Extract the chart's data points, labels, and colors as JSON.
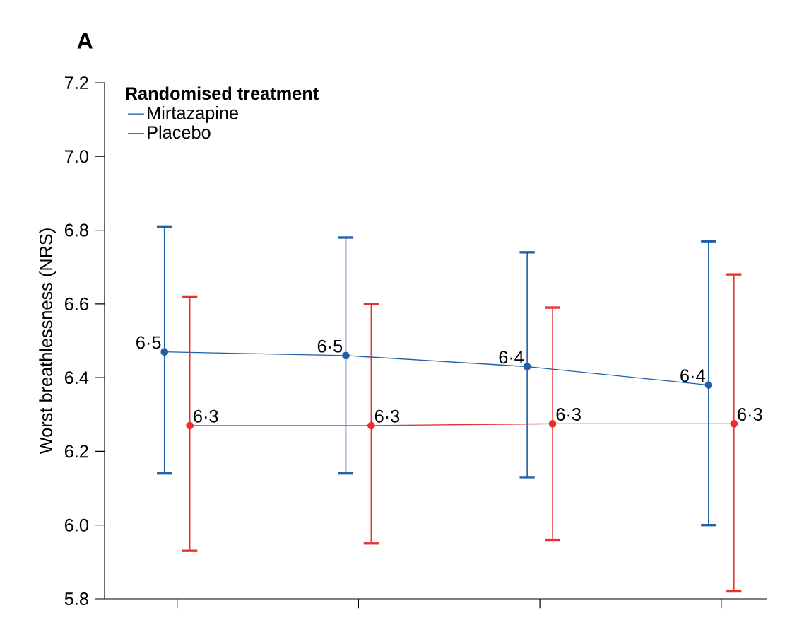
{
  "chart_data": {
    "type": "line",
    "title": "A",
    "ylabel": "Worst breathlessness (NRS)",
    "legend_title": "Randomised treatment",
    "categories": [
      null,
      null,
      null,
      null
    ],
    "ylim": [
      5.8,
      7.2
    ],
    "yticks": [
      {
        "value": 5.8,
        "label": "5.8"
      },
      {
        "value": 6.0,
        "label": "6.0"
      },
      {
        "value": 6.2,
        "label": "6.2"
      },
      {
        "value": 6.4,
        "label": "6.4"
      },
      {
        "value": 6.6,
        "label": "6.6"
      },
      {
        "value": 6.8,
        "label": "6.8"
      },
      {
        "value": 7.0,
        "label": "7.0"
      },
      {
        "value": 7.2,
        "label": "7.2"
      }
    ],
    "series": [
      {
        "name": "Mirtazapine",
        "color": "#1f5fa8",
        "values": [
          6.47,
          6.46,
          6.43,
          6.38
        ],
        "errors": [
          [
            6.14,
            6.81
          ],
          [
            6.14,
            6.78
          ],
          [
            6.13,
            6.74
          ],
          [
            6.0,
            6.77
          ]
        ],
        "value_labels": [
          "6·5",
          "6·5",
          "6·4",
          "6·4"
        ]
      },
      {
        "name": "Placebo",
        "color": "#e8312f",
        "values": [
          6.27,
          6.27,
          6.275,
          6.275
        ],
        "errors": [
          [
            5.93,
            6.62
          ],
          [
            5.95,
            6.6
          ],
          [
            5.96,
            6.59
          ],
          [
            5.82,
            6.68
          ]
        ],
        "value_labels": [
          "6·3",
          "6·3",
          "6·3",
          "6·3"
        ]
      }
    ],
    "legend": "top left",
    "marker": "circle",
    "line_style": "solid",
    "grid": false
  }
}
